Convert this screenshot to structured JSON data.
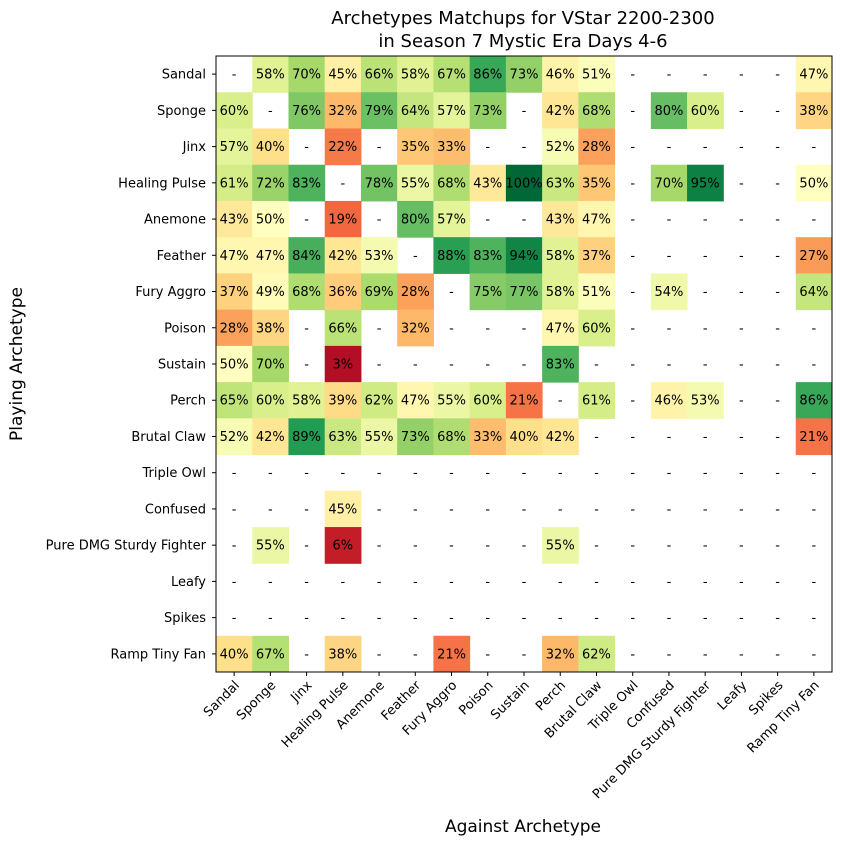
{
  "chart_data": {
    "type": "heatmap",
    "title": [
      "Archetypes Matchups for VStar 2200-2300",
      "in Season 7 Mystic Era Days 4-6"
    ],
    "xlabel": "Against Archetype",
    "ylabel": "Playing Archetype",
    "rows": [
      "Sandal",
      "Sponge",
      "Jinx",
      "Healing Pulse",
      "Anemone",
      "Feather",
      "Fury Aggro",
      "Poison",
      "Sustain",
      "Perch",
      "Brutal Claw",
      "Triple Owl",
      "Confused",
      "Pure DMG Sturdy Fighter",
      "Leafy",
      "Spikes",
      "Ramp Tiny Fan"
    ],
    "columns": [
      "Sandal",
      "Sponge",
      "Jinx",
      "Healing Pulse",
      "Anemone",
      "Feather",
      "Fury Aggro",
      "Poison",
      "Sustain",
      "Perch",
      "Brutal Claw",
      "Triple Owl",
      "Confused",
      "Pure DMG Sturdy Fighter",
      "Leafy",
      "Spikes",
      "Ramp Tiny Fan"
    ],
    "missing_label": "-",
    "value_suffix": "%",
    "colormap": "RdYlGn",
    "value_range": [
      0,
      100
    ],
    "values": [
      [
        null,
        58,
        70,
        45,
        66,
        58,
        67,
        86,
        73,
        46,
        51,
        null,
        null,
        null,
        null,
        null,
        47
      ],
      [
        60,
        null,
        76,
        32,
        79,
        64,
        57,
        73,
        null,
        42,
        68,
        null,
        80,
        60,
        null,
        null,
        38
      ],
      [
        57,
        40,
        null,
        22,
        null,
        35,
        33,
        null,
        null,
        52,
        28,
        null,
        null,
        null,
        null,
        null,
        null
      ],
      [
        61,
        72,
        83,
        null,
        78,
        55,
        68,
        43,
        100,
        63,
        35,
        null,
        70,
        95,
        null,
        null,
        50
      ],
      [
        43,
        50,
        null,
        19,
        null,
        80,
        57,
        null,
        null,
        43,
        47,
        null,
        null,
        null,
        null,
        null,
        null
      ],
      [
        47,
        47,
        84,
        42,
        53,
        null,
        88,
        83,
        94,
        58,
        37,
        null,
        null,
        null,
        null,
        null,
        27
      ],
      [
        37,
        49,
        68,
        36,
        69,
        28,
        null,
        75,
        77,
        58,
        51,
        null,
        54,
        null,
        null,
        null,
        64
      ],
      [
        28,
        38,
        null,
        66,
        null,
        32,
        null,
        null,
        null,
        47,
        60,
        null,
        null,
        null,
        null,
        null,
        null
      ],
      [
        50,
        70,
        null,
        3,
        null,
        null,
        null,
        null,
        null,
        83,
        null,
        null,
        null,
        null,
        null,
        null,
        null
      ],
      [
        65,
        60,
        58,
        39,
        62,
        47,
        55,
        60,
        21,
        null,
        61,
        null,
        46,
        53,
        null,
        null,
        86
      ],
      [
        52,
        42,
        89,
        63,
        55,
        73,
        68,
        33,
        40,
        42,
        null,
        null,
        null,
        null,
        null,
        null,
        21
      ],
      [
        null,
        null,
        null,
        null,
        null,
        null,
        null,
        null,
        null,
        null,
        null,
        null,
        null,
        null,
        null,
        null,
        null
      ],
      [
        null,
        null,
        null,
        45,
        null,
        null,
        null,
        null,
        null,
        null,
        null,
        null,
        null,
        null,
        null,
        null,
        null
      ],
      [
        null,
        55,
        null,
        6,
        null,
        null,
        null,
        null,
        null,
        55,
        null,
        null,
        null,
        null,
        null,
        null,
        null
      ],
      [
        null,
        null,
        null,
        null,
        null,
        null,
        null,
        null,
        null,
        null,
        null,
        null,
        null,
        null,
        null,
        null,
        null
      ],
      [
        null,
        null,
        null,
        null,
        null,
        null,
        null,
        null,
        null,
        null,
        null,
        null,
        null,
        null,
        null,
        null,
        null
      ],
      [
        40,
        67,
        null,
        38,
        null,
        null,
        21,
        null,
        null,
        32,
        62,
        null,
        null,
        null,
        null,
        null,
        null
      ]
    ]
  }
}
